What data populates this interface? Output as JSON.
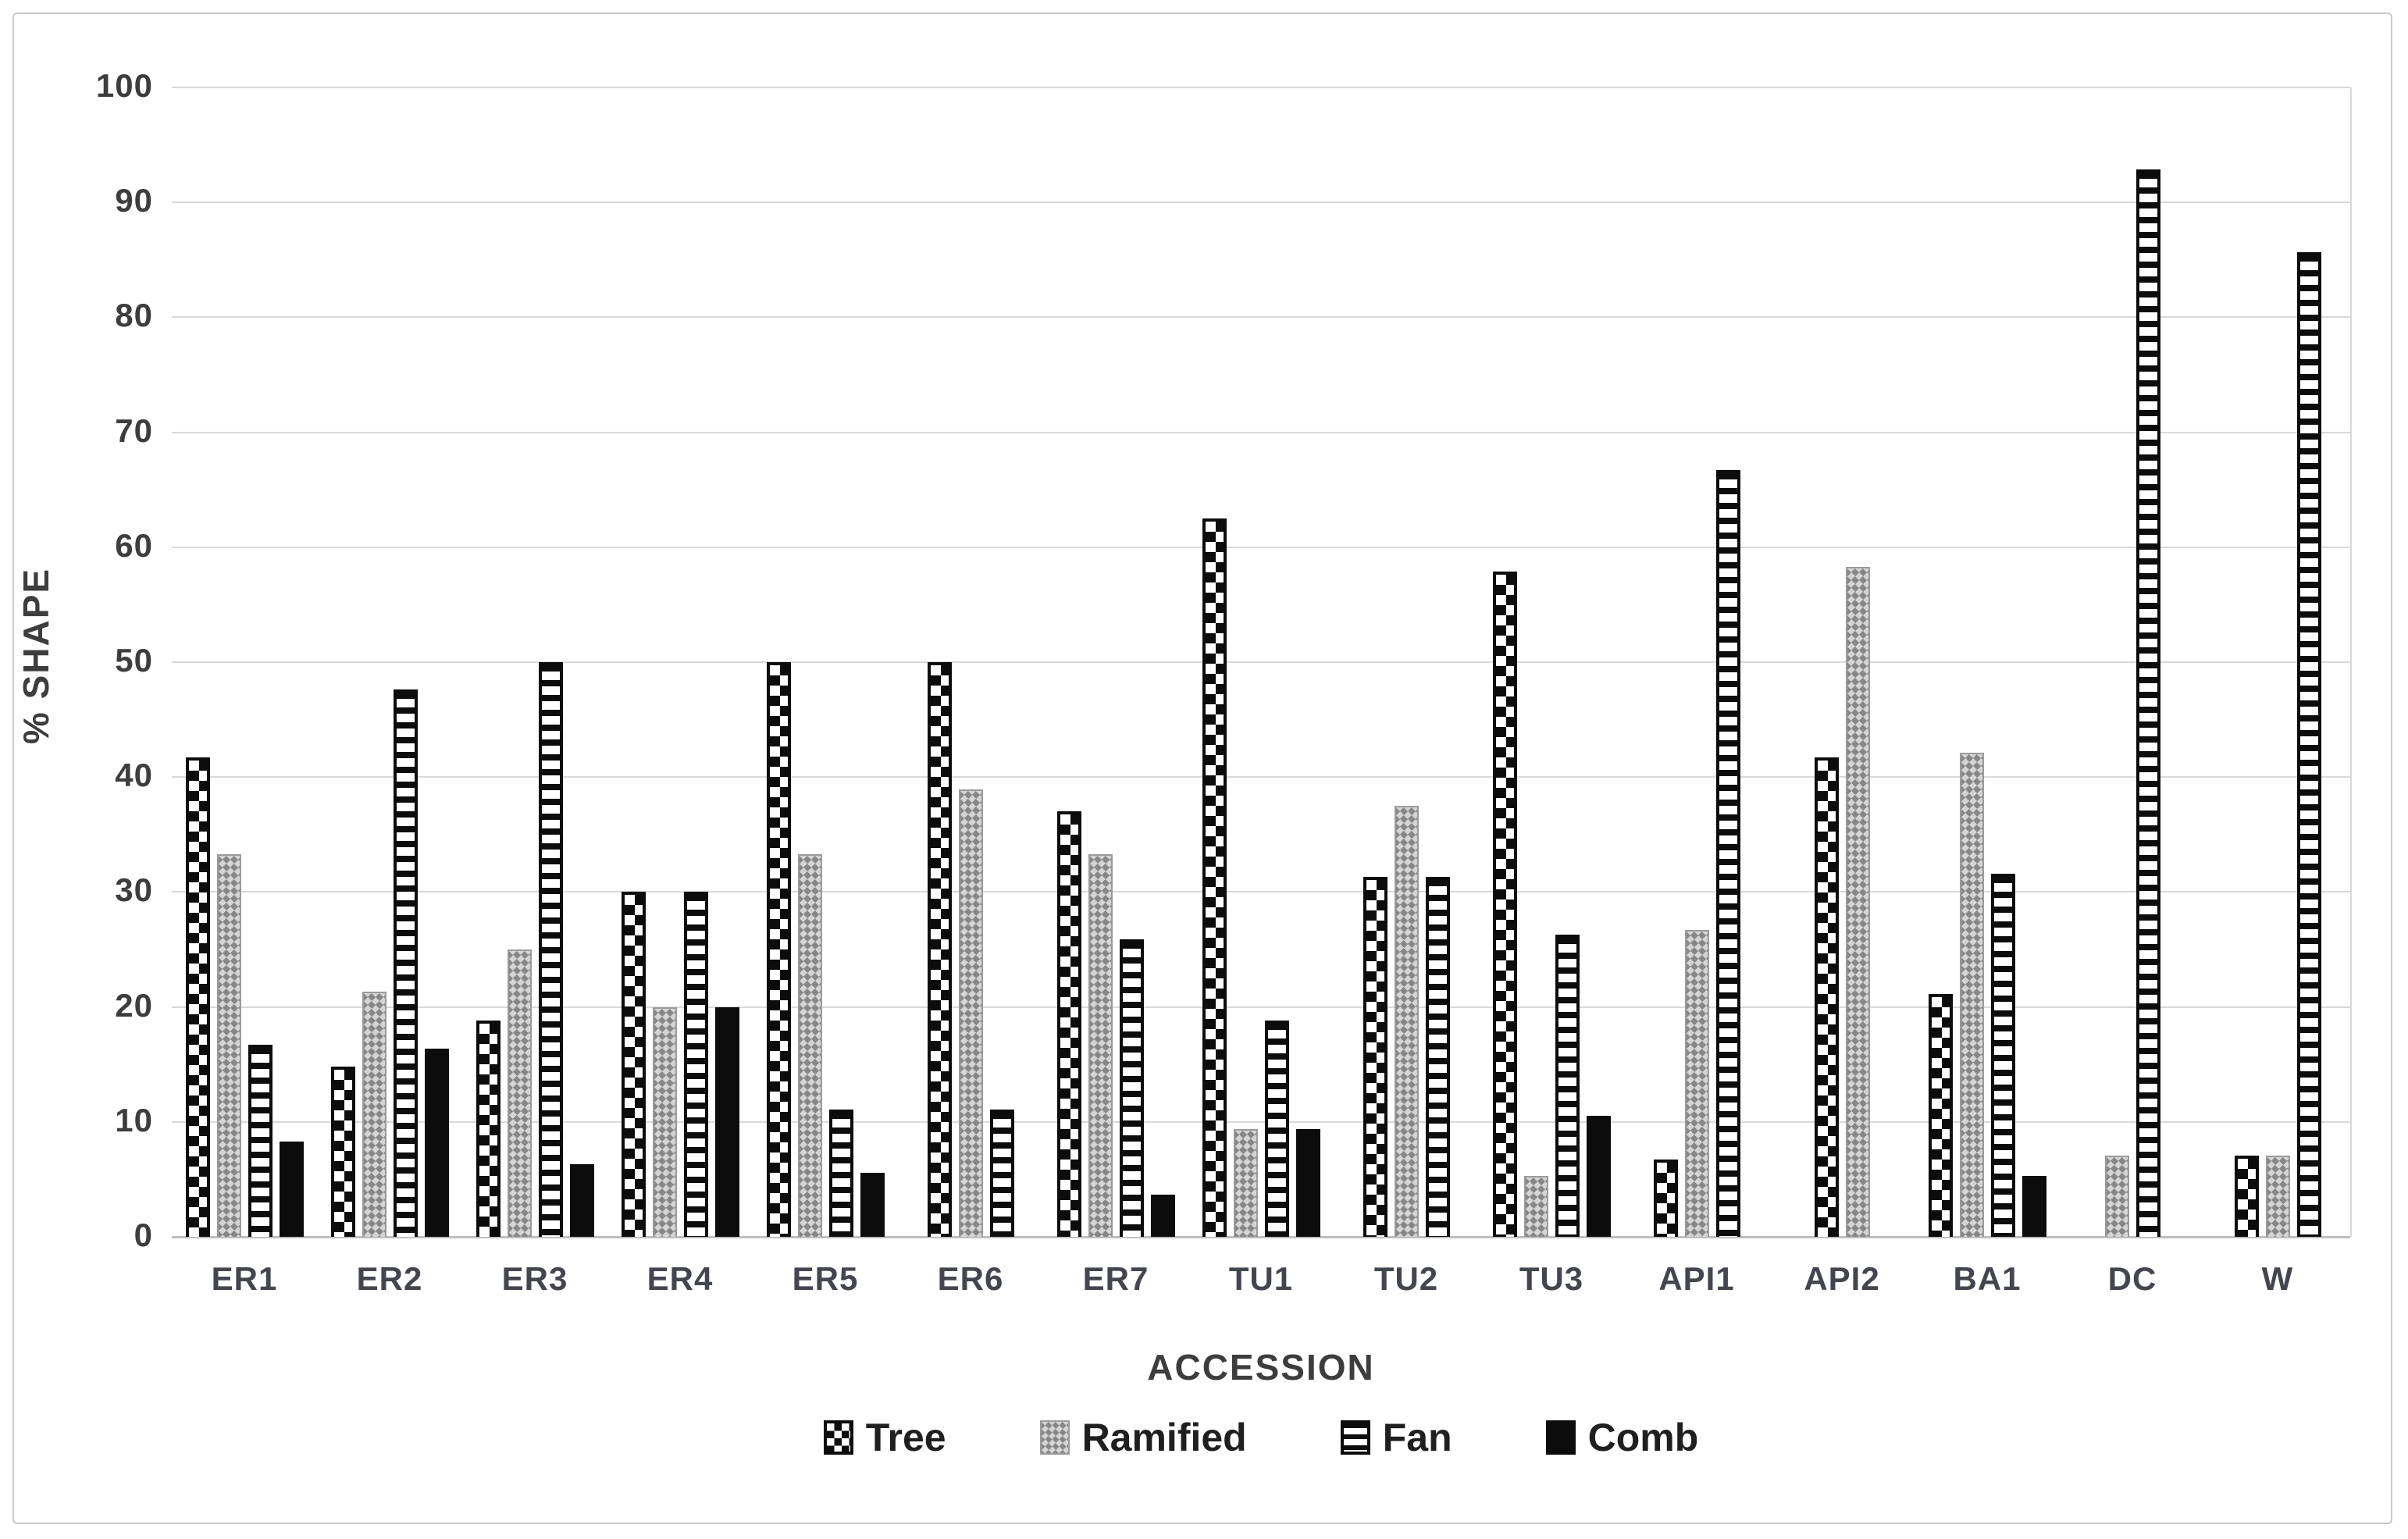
{
  "chart_data": {
    "type": "bar",
    "title": "",
    "xlabel": "ACCESSION",
    "ylabel": "% SHAPE",
    "ylim": [
      0,
      100
    ],
    "yticks": [
      0,
      10,
      20,
      30,
      40,
      50,
      60,
      70,
      80,
      90,
      100
    ],
    "grid": true,
    "legend_position": "bottom",
    "categories": [
      "ER1",
      "ER2",
      "ER3",
      "ER4",
      "ER5",
      "ER6",
      "ER7",
      "TU1",
      "TU2",
      "TU3",
      "API1",
      "API2",
      "BA1",
      "DC",
      "W"
    ],
    "series": [
      {
        "name": "Tree",
        "pattern": "tree",
        "values": [
          41.7,
          14.8,
          18.8,
          30.0,
          50.0,
          50.0,
          37.0,
          62.5,
          31.3,
          57.9,
          6.7,
          41.7,
          21.1,
          0,
          7.1
        ]
      },
      {
        "name": "Ramified",
        "pattern": "ramified",
        "values": [
          33.3,
          21.3,
          25.0,
          20.0,
          33.3,
          38.9,
          33.3,
          9.4,
          37.5,
          5.3,
          26.7,
          58.3,
          42.1,
          7.1,
          7.1
        ]
      },
      {
        "name": "Fan",
        "pattern": "fan",
        "values": [
          16.7,
          47.6,
          50.0,
          30.0,
          11.1,
          11.1,
          25.9,
          18.8,
          31.3,
          26.3,
          66.7,
          0,
          31.6,
          92.9,
          85.7
        ]
      },
      {
        "name": "Comb",
        "pattern": "comb",
        "values": [
          8.3,
          16.4,
          6.3,
          20.0,
          5.6,
          0,
          3.7,
          9.4,
          0,
          10.5,
          0,
          0,
          5.3,
          0,
          0
        ]
      }
    ]
  },
  "colors": {
    "gridline": "#d9d9d9",
    "axis_line": "#bfbfbf",
    "tick_text": "#3d3d3d",
    "legend_text": "#1f1f1f",
    "bar_black": "#0c0c0c",
    "bar_gray": "#a8a8a8",
    "frame_border": "#c9c9c9",
    "background": "#ffffff"
  }
}
